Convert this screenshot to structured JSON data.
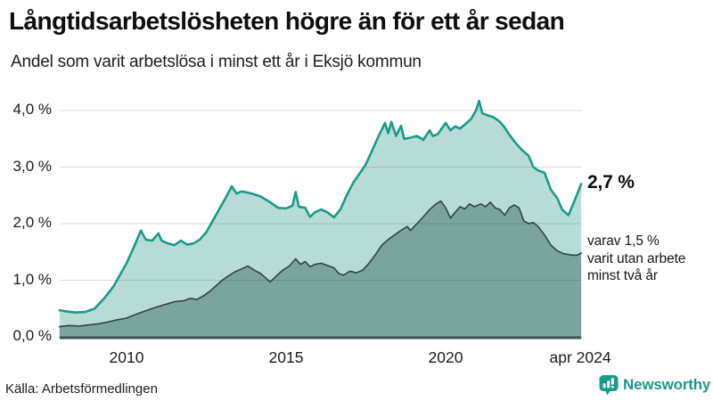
{
  "header": {
    "title": "Långtidsarbetslösheten högre än för ett år sedan",
    "subtitle": "Andel som varit arbetslösa i minst ett år i Eksjö kommun"
  },
  "annotations": {
    "latest_value": "2,7 %",
    "secondary_lines": [
      "varav 1,5 %",
      "varit utan arbete",
      "minst två år"
    ]
  },
  "footer": {
    "source": "Källa: Arbetsförmedlingen",
    "brand": "Newsworthy"
  },
  "colors": {
    "accent_teal": "#1a9a8a",
    "light_fill": "#b7dcd6",
    "dark_line": "#31424b",
    "dark_fill": "#7aa59f",
    "gridline": "rgba(30,30,30,0.16)",
    "axis": "#44525a",
    "text": "#111111"
  },
  "chart_data": {
    "type": "area",
    "title": "Långtidsarbetslösheten högre än för ett år sedan",
    "subtitle": "Andel som varit arbetslösa i minst ett år i Eksjö kommun",
    "xlabel": "",
    "ylabel": "",
    "unit": "%",
    "grid": true,
    "legend_position": "none",
    "x_axis": {
      "range": [
        2007.9,
        2024.25
      ],
      "ticks": [
        {
          "year": 2010,
          "label": "2010"
        },
        {
          "year": 2015,
          "label": "2015"
        },
        {
          "year": 2020,
          "label": "2020"
        },
        {
          "year": 2024.22,
          "label": "apr 2024"
        }
      ]
    },
    "y_axis": {
      "range": [
        0,
        4.4
      ],
      "ticks": [
        {
          "value": 0,
          "label": "0,0 %"
        },
        {
          "value": 1,
          "label": "1,0 %"
        },
        {
          "value": 2,
          "label": "2,0 %"
        },
        {
          "value": 3,
          "label": "3,0 %"
        },
        {
          "value": 4,
          "label": "4,0 %"
        }
      ]
    },
    "series": [
      {
        "id": "minst-ett-ar",
        "name": "Andel arbetslösa minst ett år",
        "line_color": "#1a9a8a",
        "fill_color": "#b7dcd6",
        "line_width": 2.6,
        "latest_value_pct": 2.7,
        "points": [
          [
            2007.9,
            0.47
          ],
          [
            2008.1,
            0.45
          ],
          [
            2008.4,
            0.43
          ],
          [
            2008.7,
            0.44
          ],
          [
            2009.0,
            0.5
          ],
          [
            2009.3,
            0.68
          ],
          [
            2009.6,
            0.9
          ],
          [
            2009.8,
            1.1
          ],
          [
            2010.0,
            1.3
          ],
          [
            2010.2,
            1.55
          ],
          [
            2010.45,
            1.88
          ],
          [
            2010.6,
            1.72
          ],
          [
            2010.8,
            1.7
          ],
          [
            2011.0,
            1.83
          ],
          [
            2011.1,
            1.7
          ],
          [
            2011.3,
            1.65
          ],
          [
            2011.5,
            1.62
          ],
          [
            2011.7,
            1.7
          ],
          [
            2011.9,
            1.63
          ],
          [
            2012.1,
            1.65
          ],
          [
            2012.3,
            1.72
          ],
          [
            2012.5,
            1.85
          ],
          [
            2012.7,
            2.05
          ],
          [
            2012.9,
            2.25
          ],
          [
            2013.1,
            2.45
          ],
          [
            2013.3,
            2.66
          ],
          [
            2013.45,
            2.53
          ],
          [
            2013.6,
            2.57
          ],
          [
            2013.8,
            2.55
          ],
          [
            2014.0,
            2.52
          ],
          [
            2014.2,
            2.48
          ],
          [
            2014.5,
            2.38
          ],
          [
            2014.75,
            2.28
          ],
          [
            2015.0,
            2.27
          ],
          [
            2015.2,
            2.32
          ],
          [
            2015.3,
            2.56
          ],
          [
            2015.4,
            2.3
          ],
          [
            2015.6,
            2.28
          ],
          [
            2015.75,
            2.12
          ],
          [
            2015.9,
            2.2
          ],
          [
            2016.1,
            2.25
          ],
          [
            2016.3,
            2.2
          ],
          [
            2016.5,
            2.11
          ],
          [
            2016.7,
            2.25
          ],
          [
            2016.9,
            2.5
          ],
          [
            2017.1,
            2.72
          ],
          [
            2017.3,
            2.88
          ],
          [
            2017.5,
            3.05
          ],
          [
            2017.7,
            3.3
          ],
          [
            2017.9,
            3.55
          ],
          [
            2018.1,
            3.78
          ],
          [
            2018.2,
            3.6
          ],
          [
            2018.3,
            3.8
          ],
          [
            2018.45,
            3.55
          ],
          [
            2018.6,
            3.73
          ],
          [
            2018.7,
            3.5
          ],
          [
            2018.9,
            3.52
          ],
          [
            2019.1,
            3.55
          ],
          [
            2019.3,
            3.48
          ],
          [
            2019.5,
            3.65
          ],
          [
            2019.6,
            3.55
          ],
          [
            2019.75,
            3.58
          ],
          [
            2019.9,
            3.7
          ],
          [
            2020.0,
            3.78
          ],
          [
            2020.15,
            3.65
          ],
          [
            2020.3,
            3.72
          ],
          [
            2020.45,
            3.68
          ],
          [
            2020.6,
            3.75
          ],
          [
            2020.8,
            3.85
          ],
          [
            2020.95,
            4.0
          ],
          [
            2021.05,
            4.17
          ],
          [
            2021.15,
            3.95
          ],
          [
            2021.3,
            3.92
          ],
          [
            2021.5,
            3.88
          ],
          [
            2021.7,
            3.8
          ],
          [
            2021.85,
            3.7
          ],
          [
            2022.0,
            3.57
          ],
          [
            2022.2,
            3.42
          ],
          [
            2022.4,
            3.3
          ],
          [
            2022.6,
            3.2
          ],
          [
            2022.75,
            3.0
          ],
          [
            2022.9,
            2.94
          ],
          [
            2023.1,
            2.9
          ],
          [
            2023.3,
            2.6
          ],
          [
            2023.5,
            2.45
          ],
          [
            2023.65,
            2.25
          ],
          [
            2023.85,
            2.15
          ],
          [
            2024.0,
            2.35
          ],
          [
            2024.25,
            2.7
          ]
        ]
      },
      {
        "id": "minst-tva-ar",
        "name": "varav utan arbete minst två år",
        "line_color": "#31424b",
        "fill_color": "#7aa59f",
        "line_width": 1.6,
        "latest_value_pct": 1.5,
        "points": [
          [
            2007.9,
            0.18
          ],
          [
            2008.2,
            0.2
          ],
          [
            2008.5,
            0.19
          ],
          [
            2008.8,
            0.21
          ],
          [
            2009.1,
            0.23
          ],
          [
            2009.4,
            0.26
          ],
          [
            2009.7,
            0.3
          ],
          [
            2010.0,
            0.33
          ],
          [
            2010.3,
            0.4
          ],
          [
            2010.6,
            0.46
          ],
          [
            2010.9,
            0.52
          ],
          [
            2011.2,
            0.57
          ],
          [
            2011.5,
            0.62
          ],
          [
            2011.8,
            0.64
          ],
          [
            2012.0,
            0.68
          ],
          [
            2012.2,
            0.66
          ],
          [
            2012.4,
            0.72
          ],
          [
            2012.6,
            0.8
          ],
          [
            2012.8,
            0.9
          ],
          [
            2013.0,
            1.0
          ],
          [
            2013.2,
            1.08
          ],
          [
            2013.4,
            1.15
          ],
          [
            2013.6,
            1.2
          ],
          [
            2013.8,
            1.25
          ],
          [
            2014.0,
            1.18
          ],
          [
            2014.2,
            1.12
          ],
          [
            2014.4,
            1.02
          ],
          [
            2014.5,
            0.97
          ],
          [
            2014.7,
            1.08
          ],
          [
            2014.9,
            1.18
          ],
          [
            2015.1,
            1.25
          ],
          [
            2015.3,
            1.38
          ],
          [
            2015.45,
            1.28
          ],
          [
            2015.6,
            1.33
          ],
          [
            2015.75,
            1.24
          ],
          [
            2015.9,
            1.28
          ],
          [
            2016.1,
            1.3
          ],
          [
            2016.3,
            1.26
          ],
          [
            2016.5,
            1.22
          ],
          [
            2016.65,
            1.12
          ],
          [
            2016.8,
            1.09
          ],
          [
            2017.0,
            1.16
          ],
          [
            2017.2,
            1.13
          ],
          [
            2017.4,
            1.18
          ],
          [
            2017.6,
            1.3
          ],
          [
            2017.8,
            1.45
          ],
          [
            2018.0,
            1.62
          ],
          [
            2018.2,
            1.72
          ],
          [
            2018.4,
            1.8
          ],
          [
            2018.6,
            1.88
          ],
          [
            2018.8,
            1.95
          ],
          [
            2018.9,
            1.88
          ],
          [
            2019.1,
            2.0
          ],
          [
            2019.3,
            2.12
          ],
          [
            2019.5,
            2.25
          ],
          [
            2019.7,
            2.35
          ],
          [
            2019.85,
            2.4
          ],
          [
            2020.0,
            2.28
          ],
          [
            2020.15,
            2.1
          ],
          [
            2020.3,
            2.2
          ],
          [
            2020.45,
            2.3
          ],
          [
            2020.6,
            2.26
          ],
          [
            2020.75,
            2.35
          ],
          [
            2020.9,
            2.3
          ],
          [
            2021.1,
            2.35
          ],
          [
            2021.25,
            2.3
          ],
          [
            2021.4,
            2.38
          ],
          [
            2021.55,
            2.28
          ],
          [
            2021.7,
            2.25
          ],
          [
            2021.85,
            2.15
          ],
          [
            2022.0,
            2.28
          ],
          [
            2022.15,
            2.33
          ],
          [
            2022.3,
            2.28
          ],
          [
            2022.45,
            2.05
          ],
          [
            2022.6,
            2.0
          ],
          [
            2022.75,
            2.02
          ],
          [
            2022.9,
            1.95
          ],
          [
            2023.1,
            1.8
          ],
          [
            2023.3,
            1.62
          ],
          [
            2023.5,
            1.52
          ],
          [
            2023.7,
            1.47
          ],
          [
            2023.9,
            1.45
          ],
          [
            2024.1,
            1.44
          ],
          [
            2024.25,
            1.48
          ]
        ]
      }
    ]
  }
}
